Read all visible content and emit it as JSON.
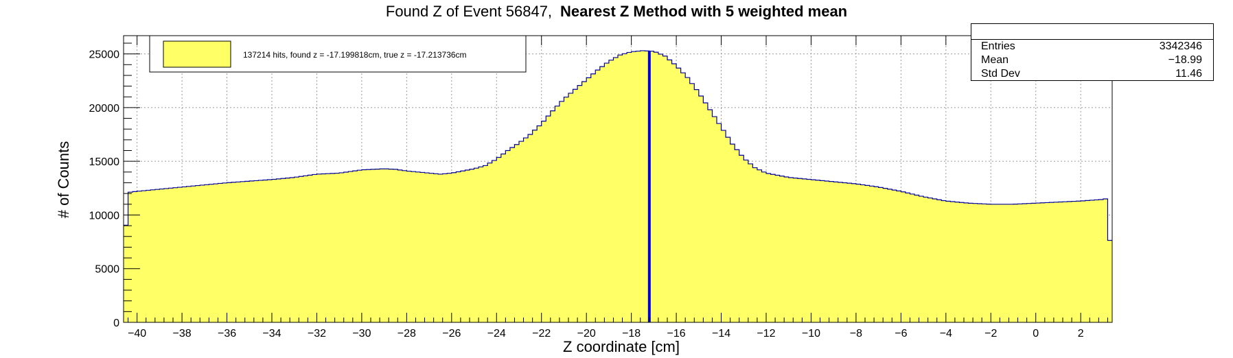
{
  "title": {
    "prefix": "Found Z of Event 56847,",
    "bold": "Nearest Z Method with 5 weighted mean"
  },
  "stats_box": {
    "rows": [
      {
        "key": "Entries",
        "value": "3342346"
      },
      {
        "key": "Mean",
        "value": "−18.99"
      },
      {
        "key": "Std Dev",
        "value": "11.46"
      }
    ]
  },
  "legend": {
    "label": "137214 hits, found z = -17.199818cm, true z = -17.213736cm",
    "fill_color": "#ffff66",
    "border_color": "#000000"
  },
  "colors": {
    "histogram_fill": "#ffff66",
    "histogram_line": "#000099",
    "marker_line": "#0000dd"
  },
  "chart_data": {
    "type": "area",
    "title": "Found Z of Event 56847,   Nearest Z Method with 5 weighted mean",
    "xlabel": "Z coordinate [cm]",
    "ylabel": "# of Counts",
    "xlim": [
      -40.6,
      3.4
    ],
    "ylim": [
      0,
      26700
    ],
    "grid": true,
    "legend_position": "top-left",
    "x_ticks": [
      -40,
      -38,
      -36,
      -34,
      -32,
      -30,
      -28,
      -26,
      -24,
      -22,
      -20,
      -18,
      -16,
      -14,
      -12,
      -10,
      -8,
      -6,
      -4,
      -2,
      0,
      2
    ],
    "y_ticks": [
      0,
      5000,
      10000,
      15000,
      20000,
      25000
    ],
    "series": [
      {
        "name": "137214 hits, found z = -17.199818cm, true z = -17.213736cm",
        "x": [
          -40.6,
          -40.4,
          -40,
          -38,
          -36,
          -34,
          -33,
          -32,
          -31,
          -30,
          -29,
          -28.5,
          -28,
          -27,
          -26.5,
          -26,
          -25,
          -24.5,
          -24,
          -23.5,
          -23,
          -22.5,
          -22,
          -21.5,
          -21,
          -20.5,
          -20,
          -19.5,
          -19,
          -18.5,
          -18,
          -17.5,
          -17,
          -16.5,
          -16,
          -15.5,
          -15,
          -14.5,
          -14,
          -13.5,
          -13,
          -12.5,
          -12,
          -11,
          -10,
          -8,
          -7,
          -6,
          -5,
          -4,
          -3,
          -2,
          -1,
          0,
          1,
          2,
          3,
          3.1,
          3.4
        ],
        "y": [
          6000,
          12100,
          12200,
          12600,
          13000,
          13300,
          13500,
          13800,
          13900,
          14200,
          14300,
          14250,
          14100,
          13900,
          13800,
          13900,
          14300,
          14600,
          15200,
          16000,
          16700,
          17500,
          18500,
          19700,
          20800,
          21700,
          22600,
          23500,
          24300,
          24900,
          25200,
          25300,
          25250,
          24800,
          23900,
          22800,
          21400,
          19800,
          18200,
          16600,
          15300,
          14400,
          13900,
          13500,
          13300,
          12900,
          12600,
          12200,
          11700,
          11300,
          11100,
          11000,
          11000,
          11100,
          11200,
          11300,
          11450,
          11500,
          5700
        ]
      }
    ],
    "annotations": [
      {
        "type": "vertical_line",
        "x": -17.2,
        "label": "found z"
      }
    ]
  }
}
